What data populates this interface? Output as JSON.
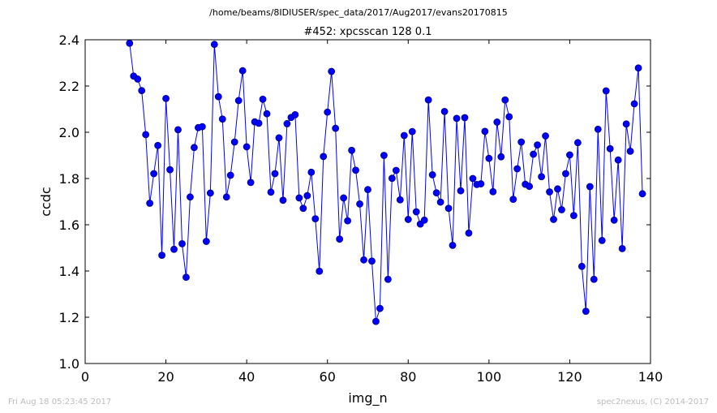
{
  "header": {
    "suptitle": "/home/beams/8IDIUSER/spec_data/2017/Aug2017/evans20170815",
    "title": "#452: xpcsscan 128 0.1"
  },
  "footer": {
    "timestamp": "Fri Aug 18 05:23:45 2017",
    "credit": "spec2nexus, (C) 2014-2017"
  },
  "chart_data": {
    "type": "line",
    "title": "#452: xpcsscan 128 0.1",
    "xlabel": "img_n",
    "ylabel": "ccdc",
    "xlim": [
      0,
      140
    ],
    "ylim": [
      1.0,
      2.4
    ],
    "xticks": [
      "0",
      "20",
      "40",
      "60",
      "80",
      "100",
      "120",
      "140"
    ],
    "yticks": [
      "1.0",
      "1.2",
      "1.4",
      "1.6",
      "1.8",
      "2.0",
      "2.2",
      "2.4"
    ],
    "grid": false,
    "legend": "none",
    "colors": {
      "line": "#0000ff",
      "marker_fill": "#0000ff",
      "marker_edge": "#000080"
    },
    "x": [
      11,
      12,
      13,
      14,
      15,
      16,
      17,
      18,
      19,
      20,
      21,
      22,
      23,
      24,
      25,
      26,
      27,
      28,
      29,
      30,
      31,
      32,
      33,
      34,
      35,
      36,
      37,
      38,
      39,
      40,
      41,
      42,
      43,
      44,
      45,
      46,
      47,
      48,
      49,
      50,
      51,
      52,
      53,
      54,
      55,
      56,
      57,
      58,
      59,
      60,
      61,
      62,
      63,
      64,
      65,
      66,
      67,
      68,
      69,
      70,
      71,
      72,
      73,
      74,
      75,
      76,
      77,
      78,
      79,
      80,
      81,
      82,
      83,
      84,
      85,
      86,
      87,
      88,
      89,
      90,
      91,
      92,
      93,
      94,
      95,
      96,
      97,
      98,
      99,
      100,
      101,
      102,
      103,
      104,
      105,
      106,
      107,
      108,
      109,
      110,
      111,
      112,
      113,
      114,
      115,
      116,
      117,
      118,
      119,
      120,
      121,
      122,
      123,
      124,
      125,
      126,
      127,
      128,
      129,
      130,
      131,
      132,
      133,
      134,
      135,
      136,
      137,
      138
    ],
    "series": [
      {
        "values": [
          2.385,
          2.243,
          2.23,
          2.18,
          1.99,
          1.693,
          1.821,
          1.943,
          1.468,
          2.146,
          1.838,
          1.494,
          2.011,
          1.518,
          1.373,
          1.72,
          1.934,
          2.02,
          2.024,
          1.528,
          1.737,
          2.38,
          2.154,
          2.057,
          1.72,
          1.814,
          1.958,
          2.137,
          2.266,
          1.937,
          1.783,
          2.045,
          2.039,
          2.143,
          2.08,
          1.741,
          1.821,
          1.976,
          1.706,
          2.037,
          2.064,
          2.076,
          1.716,
          1.671,
          1.726,
          1.827,
          1.626,
          1.399,
          1.895,
          2.087,
          2.263,
          2.017,
          1.538,
          1.716,
          1.617,
          1.922,
          1.836,
          1.69,
          1.448,
          1.752,
          1.443,
          1.182,
          1.238,
          1.9,
          1.364,
          1.801,
          1.835,
          1.708,
          1.986,
          1.623,
          2.003,
          1.656,
          1.603,
          1.62,
          2.14,
          1.816,
          1.738,
          1.698,
          2.09,
          1.671,
          1.511,
          2.06,
          1.747,
          2.063,
          1.564,
          1.8,
          1.774,
          1.777,
          2.004,
          1.887,
          1.743,
          2.044,
          1.894,
          2.14,
          2.067,
          1.71,
          1.842,
          1.958,
          1.775,
          1.766,
          1.905,
          1.945,
          1.808,
          1.984,
          1.742,
          1.623,
          1.755,
          1.665,
          1.821,
          1.902,
          1.64,
          1.955,
          1.42,
          1.226,
          1.765,
          1.364,
          2.013,
          1.532,
          2.179,
          1.929,
          1.62,
          1.88,
          1.497,
          2.036,
          1.918,
          2.123,
          2.278,
          1.734
        ]
      }
    ]
  }
}
